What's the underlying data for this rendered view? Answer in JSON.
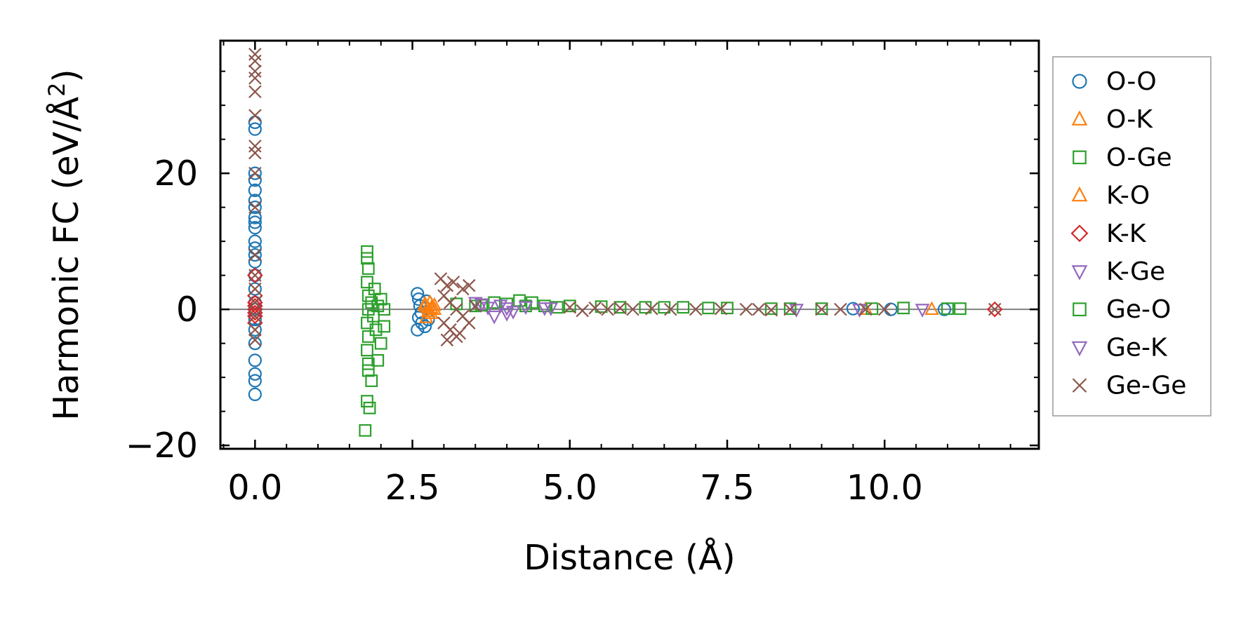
{
  "chart_data": {
    "type": "scatter",
    "xlabel": "Distance (Å)",
    "ylabel_main": "Harmonic FC (eV/Å",
    "ylabel_sup": "2",
    "ylabel_close": ")",
    "xlim": [
      -0.55,
      12.45
    ],
    "ylim": [
      -20.5,
      39.5
    ],
    "x_ticks": [
      0.0,
      2.5,
      5.0,
      7.5,
      10.0
    ],
    "x_tick_labels": [
      "0.0",
      "2.5",
      "5.0",
      "7.5",
      "10.0"
    ],
    "y_ticks": [
      -20,
      0,
      20
    ],
    "y_tick_labels": [
      "−20",
      "0",
      "20"
    ],
    "zero_line": true,
    "grid": false,
    "legend_position": "outside-right",
    "series": [
      {
        "name": "O-O",
        "marker": "circle",
        "color": "#1f77b4",
        "points": [
          [
            0,
            27.5
          ],
          [
            0,
            26.5
          ],
          [
            0,
            20
          ],
          [
            0,
            19
          ],
          [
            0,
            17.5
          ],
          [
            0,
            16
          ],
          [
            0,
            15
          ],
          [
            0,
            13.5
          ],
          [
            0,
            12.8
          ],
          [
            0,
            12
          ],
          [
            0,
            10
          ],
          [
            0,
            9
          ],
          [
            0,
            8
          ],
          [
            0,
            7
          ],
          [
            0,
            5
          ],
          [
            0,
            3
          ],
          [
            0,
            1
          ],
          [
            0,
            0
          ],
          [
            0,
            -1.5
          ],
          [
            0,
            -3
          ],
          [
            0,
            -5
          ],
          [
            0,
            -7.5
          ],
          [
            0,
            -9.5
          ],
          [
            0,
            -10.5
          ],
          [
            0,
            -12.5
          ],
          [
            2.58,
            2.3
          ],
          [
            2.6,
            1.5
          ],
          [
            2.62,
            0.5
          ],
          [
            2.64,
            -0.5
          ],
          [
            2.6,
            -1.2
          ],
          [
            2.65,
            -2
          ],
          [
            2.7,
            -2.5
          ],
          [
            2.58,
            -3
          ],
          [
            2.72,
            1.2
          ],
          [
            2.75,
            -1.5
          ],
          [
            9.5,
            0.1
          ],
          [
            10.1,
            0
          ],
          [
            10.95,
            0
          ]
        ]
      },
      {
        "name": "O-K",
        "marker": "triangle-up",
        "color": "#ff7f0e",
        "points": [
          [
            2.7,
            0.5
          ],
          [
            2.75,
            -0.3
          ],
          [
            2.8,
            0.2
          ],
          [
            2.72,
            -1.2
          ],
          [
            2.78,
            1
          ],
          [
            2.85,
            0
          ],
          [
            9.7,
            0
          ],
          [
            10.75,
            0
          ]
        ]
      },
      {
        "name": "O-Ge",
        "marker": "square",
        "color": "#2ca02c",
        "points": [
          [
            1.78,
            8.5
          ],
          [
            1.78,
            7.5
          ],
          [
            1.8,
            6
          ],
          [
            1.78,
            4
          ],
          [
            1.8,
            2
          ],
          [
            1.8,
            0
          ],
          [
            1.78,
            -2
          ],
          [
            1.8,
            -4
          ],
          [
            1.78,
            -6
          ],
          [
            1.8,
            -8
          ],
          [
            1.8,
            -9
          ],
          [
            1.78,
            -13.5
          ],
          [
            1.82,
            -14.5
          ],
          [
            1.75,
            -17.8
          ],
          [
            1.85,
            1
          ],
          [
            1.88,
            -1
          ],
          [
            1.9,
            3
          ],
          [
            1.92,
            -3
          ],
          [
            1.95,
            0.5
          ],
          [
            1.95,
            -7.5
          ],
          [
            2.0,
            -5
          ],
          [
            2.0,
            1.5
          ],
          [
            2.05,
            -2.5
          ],
          [
            2.05,
            0
          ],
          [
            1.85,
            -10.5
          ],
          [
            3.5,
            0.5
          ],
          [
            3.8,
            1
          ],
          [
            4.0,
            0.8
          ],
          [
            4.2,
            1.3
          ],
          [
            4.4,
            1
          ],
          [
            4.6,
            0.5
          ],
          [
            4.8,
            0.3
          ],
          [
            5.5,
            0.4
          ],
          [
            6.2,
            0.3
          ],
          [
            6.8,
            0.3
          ],
          [
            7.5,
            0.2
          ],
          [
            8.2,
            0.1
          ],
          [
            9.0,
            0.1
          ],
          [
            10.3,
            0.2
          ],
          [
            11.0,
            0.1
          ],
          [
            11.2,
            0.1
          ]
        ]
      },
      {
        "name": "K-O",
        "marker": "triangle-up",
        "color": "#ff7f0e",
        "points": [
          [
            2.7,
            0.8
          ],
          [
            2.74,
            0.3
          ],
          [
            2.8,
            -0.6
          ],
          [
            2.85,
            0.6
          ]
        ]
      },
      {
        "name": "K-K",
        "marker": "diamond",
        "color": "#d62728",
        "points": [
          [
            0,
            5
          ],
          [
            0,
            2
          ],
          [
            0,
            1
          ],
          [
            0,
            0.5
          ],
          [
            0,
            0
          ],
          [
            0,
            -0.5
          ],
          [
            0,
            -1
          ],
          [
            0,
            -2
          ],
          [
            11.75,
            0
          ]
        ]
      },
      {
        "name": "K-Ge",
        "marker": "triangle-down",
        "color": "#9467bd",
        "points": [
          [
            3.5,
            1
          ],
          [
            3.7,
            0.3
          ],
          [
            3.8,
            -1
          ],
          [
            3.9,
            0.6
          ],
          [
            4.0,
            0.2
          ],
          [
            4.1,
            -0.3
          ],
          [
            4.3,
            0.4
          ],
          [
            4.6,
            0.2
          ]
        ]
      },
      {
        "name": "Ge-O",
        "marker": "square",
        "color": "#2ca02c",
        "points": [
          [
            3.2,
            0.8
          ],
          [
            3.6,
            0.6
          ],
          [
            4.3,
            0.5
          ],
          [
            5.0,
            0.5
          ],
          [
            5.8,
            0.3
          ],
          [
            6.5,
            0.3
          ],
          [
            7.2,
            0.2
          ],
          [
            8.5,
            0.1
          ],
          [
            9.8,
            0.1
          ]
        ]
      },
      {
        "name": "Ge-K",
        "marker": "triangle-down",
        "color": "#9467bd",
        "points": [
          [
            3.6,
            0.8
          ],
          [
            4.0,
            -0.6
          ],
          [
            4.3,
            0.4
          ],
          [
            4.7,
            0.2
          ],
          [
            8.6,
            0
          ],
          [
            9.6,
            0
          ],
          [
            10.6,
            0
          ]
        ]
      },
      {
        "name": "Ge-Ge",
        "marker": "x",
        "color": "#8c564b",
        "points": [
          [
            0,
            37.5
          ],
          [
            0,
            36.5
          ],
          [
            0,
            35
          ],
          [
            0,
            34
          ],
          [
            0,
            32
          ],
          [
            0,
            28.5
          ],
          [
            0,
            24
          ],
          [
            0,
            23
          ],
          [
            0,
            20
          ],
          [
            0,
            15
          ],
          [
            0,
            8
          ],
          [
            0,
            5
          ],
          [
            0,
            3
          ],
          [
            0,
            1
          ],
          [
            0,
            -1
          ],
          [
            0,
            -3
          ],
          [
            0,
            -4.5
          ],
          [
            2.95,
            4.5
          ],
          [
            3.05,
            3.5
          ],
          [
            3.15,
            4
          ],
          [
            3.3,
            3
          ],
          [
            3.4,
            3.5
          ],
          [
            3.0,
            2
          ],
          [
            3.1,
            1
          ],
          [
            3.2,
            0
          ],
          [
            3.3,
            -1
          ],
          [
            3.0,
            -2
          ],
          [
            3.1,
            -3
          ],
          [
            3.2,
            -4
          ],
          [
            3.25,
            -3.5
          ],
          [
            3.05,
            -4.5
          ],
          [
            3.4,
            -2
          ],
          [
            3.5,
            0.5
          ],
          [
            5.0,
            0.3
          ],
          [
            5.2,
            -0.2
          ],
          [
            5.4,
            0.2
          ],
          [
            5.6,
            0
          ],
          [
            5.8,
            0.2
          ],
          [
            6.0,
            0
          ],
          [
            6.3,
            0.1
          ],
          [
            6.6,
            0
          ],
          [
            7.0,
            0
          ],
          [
            7.4,
            0.1
          ],
          [
            7.8,
            0
          ],
          [
            8.0,
            0
          ],
          [
            8.2,
            -0.1
          ],
          [
            8.5,
            0
          ],
          [
            9.0,
            0
          ],
          [
            9.3,
            0
          ],
          [
            9.7,
            0
          ],
          [
            10.0,
            0
          ],
          [
            11.75,
            0
          ]
        ]
      }
    ]
  }
}
